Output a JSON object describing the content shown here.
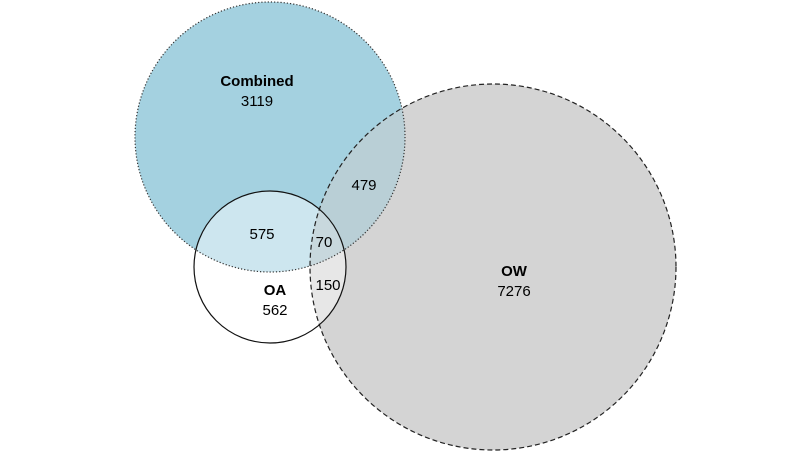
{
  "sets": {
    "combined": {
      "name": "Combined",
      "only_count": "3119",
      "fill": "#a4d1e0",
      "stroke": "#333333",
      "stroke_style": "dotted"
    },
    "ow": {
      "name": "OW",
      "only_count": "7276",
      "fill": "#d4d4d4",
      "stroke": "#222222",
      "stroke_style": "dashed"
    },
    "oa": {
      "name": "OA",
      "only_count": "562",
      "fill": "#ffffff",
      "stroke": "#111111",
      "stroke_style": "solid"
    }
  },
  "intersections": {
    "combined_oa": "575",
    "combined_ow": "479",
    "combined_oa_ow": "70",
    "oa_ow": "150"
  },
  "region_colors": {
    "combined_oa": "#cde6ef",
    "combined_ow": "#b9cfd6",
    "combined_oa_ow": "#c8d8dd",
    "oa_ow": "#e7e7e7"
  }
}
